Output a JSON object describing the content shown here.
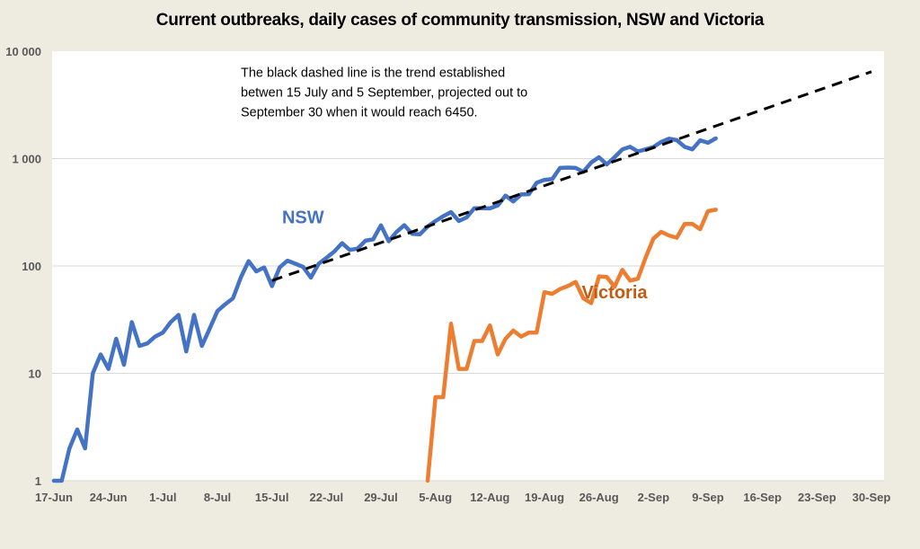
{
  "chart_data": {
    "type": "line",
    "title": "Current outbreaks, daily cases of community transmission, NSW and Victoria",
    "xlabel": "",
    "ylabel": "",
    "yscale": "log",
    "ylim": [
      1,
      10000
    ],
    "y_ticks": [
      1,
      10,
      100,
      1000,
      10000
    ],
    "y_tick_labels": [
      "1",
      "10",
      "100",
      "1 000",
      "10 000"
    ],
    "x_start_date": "17-Jun",
    "x_range_days": [
      0,
      105
    ],
    "x_ticks": [
      0,
      7,
      14,
      21,
      28,
      35,
      42,
      49,
      56,
      63,
      70,
      77,
      84,
      91,
      98,
      105
    ],
    "x_tick_labels": [
      "17-Jun",
      "24-Jun",
      "1-Jul",
      "8-Jul",
      "15-Jul",
      "22-Jul",
      "29-Jul",
      "5-Aug",
      "12-Aug",
      "19-Aug",
      "26-Aug",
      "2-Sep",
      "9-Sep",
      "16-Sep",
      "23-Sep",
      "30-Sep"
    ],
    "grid": "horizontal",
    "legend": "none",
    "series": [
      {
        "name": "NSW",
        "color": "#4472c4",
        "label_pos": {
          "day": 32,
          "value": 250
        },
        "start_day": 0,
        "values": [
          1,
          1,
          2,
          3,
          2,
          10,
          15,
          11,
          21,
          12,
          30,
          18,
          19,
          22,
          24,
          30,
          35,
          16,
          35,
          18,
          26,
          38,
          44,
          50,
          78,
          111,
          89,
          97,
          65,
          97,
          112,
          105,
          98,
          78,
          105,
          119,
          136,
          163,
          141,
          145,
          172,
          177,
          239,
          170,
          207,
          240,
          199,
          197,
          233,
          262,
          290,
          318,
          262,
          283,
          345,
          345,
          344,
          366,
          452,
          399,
          464,
          466,
          596,
          633,
          644,
          818,
          825,
          818,
          753,
          919,
          1029,
          882,
          1029,
          1218,
          1288,
          1164,
          1220,
          1281,
          1431,
          1533,
          1485,
          1288,
          1220,
          1480,
          1405,
          1542
        ]
      },
      {
        "name": "Victoria",
        "color": "#ed7d31",
        "label_color": "#c55a11",
        "label_pos": {
          "day": 72,
          "value": 50
        },
        "start_day": 48,
        "values": [
          1,
          6,
          6,
          29,
          11,
          11,
          20,
          20,
          28,
          15,
          21,
          25,
          22,
          24,
          24,
          57,
          55,
          61,
          65,
          71,
          50,
          45,
          80,
          79,
          64,
          92,
          73,
          76,
          120,
          180,
          208,
          192,
          183,
          246,
          246,
          220,
          324,
          334
        ]
      },
      {
        "name": "Trend (15 Jul – 5 Sep, projected)",
        "color": "#000000",
        "dashed": true,
        "points": [
          {
            "day": 28,
            "value": 73
          },
          {
            "day": 105,
            "value": 6450
          }
        ]
      }
    ],
    "annotations": [
      {
        "lines": [
          "The black dashed line is the trend established",
          "betwen 15 July and 5 September, projected out to",
          "September 30 when it would reach 6450."
        ],
        "pos": {
          "day": 24,
          "value": 5800
        }
      }
    ]
  }
}
